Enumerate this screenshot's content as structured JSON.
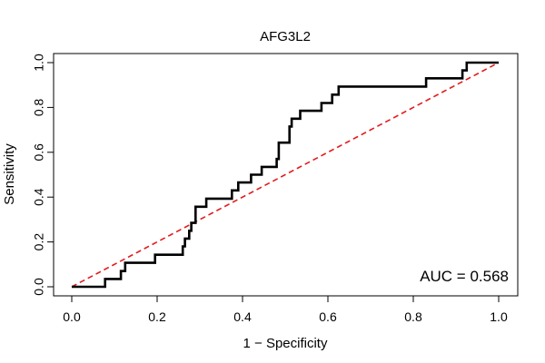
{
  "chart_data": {
    "type": "line",
    "title": "AFG3L2",
    "xlabel": "1 − Specificity",
    "ylabel": "Sensitivity",
    "xlim": [
      0,
      1
    ],
    "ylim": [
      0,
      1
    ],
    "x_ticks": [
      "0.0",
      "0.2",
      "0.4",
      "0.6",
      "0.8",
      "1.0"
    ],
    "y_ticks": [
      "0.0",
      "0.2",
      "0.4",
      "0.6",
      "0.8",
      "1.0"
    ],
    "grid": false,
    "auc_text": "AUC = 0.568",
    "series": [
      {
        "name": "ROC curve",
        "color": "#000000",
        "x": [
          0.0,
          0.078,
          0.078,
          0.115,
          0.115,
          0.125,
          0.125,
          0.195,
          0.195,
          0.26,
          0.26,
          0.265,
          0.265,
          0.275,
          0.275,
          0.28,
          0.28,
          0.29,
          0.29,
          0.315,
          0.315,
          0.375,
          0.375,
          0.39,
          0.39,
          0.42,
          0.42,
          0.445,
          0.445,
          0.48,
          0.48,
          0.485,
          0.485,
          0.51,
          0.51,
          0.515,
          0.515,
          0.535,
          0.535,
          0.585,
          0.585,
          0.61,
          0.61,
          0.625,
          0.625,
          0.83,
          0.83,
          0.915,
          0.915,
          0.925,
          0.925,
          1.0
        ],
        "y": [
          0.0,
          0.0,
          0.035,
          0.035,
          0.07,
          0.07,
          0.107,
          0.107,
          0.143,
          0.143,
          0.18,
          0.18,
          0.215,
          0.215,
          0.25,
          0.25,
          0.285,
          0.285,
          0.357,
          0.357,
          0.393,
          0.393,
          0.43,
          0.43,
          0.465,
          0.465,
          0.5,
          0.5,
          0.535,
          0.535,
          0.57,
          0.57,
          0.643,
          0.643,
          0.715,
          0.715,
          0.75,
          0.75,
          0.785,
          0.785,
          0.82,
          0.82,
          0.857,
          0.857,
          0.893,
          0.893,
          0.93,
          0.93,
          0.965,
          0.965,
          1.0,
          1.0
        ]
      },
      {
        "name": "reference diagonal",
        "color": "#e31a1c",
        "style": "dashed",
        "x": [
          0,
          1
        ],
        "y": [
          0,
          1
        ]
      }
    ]
  }
}
